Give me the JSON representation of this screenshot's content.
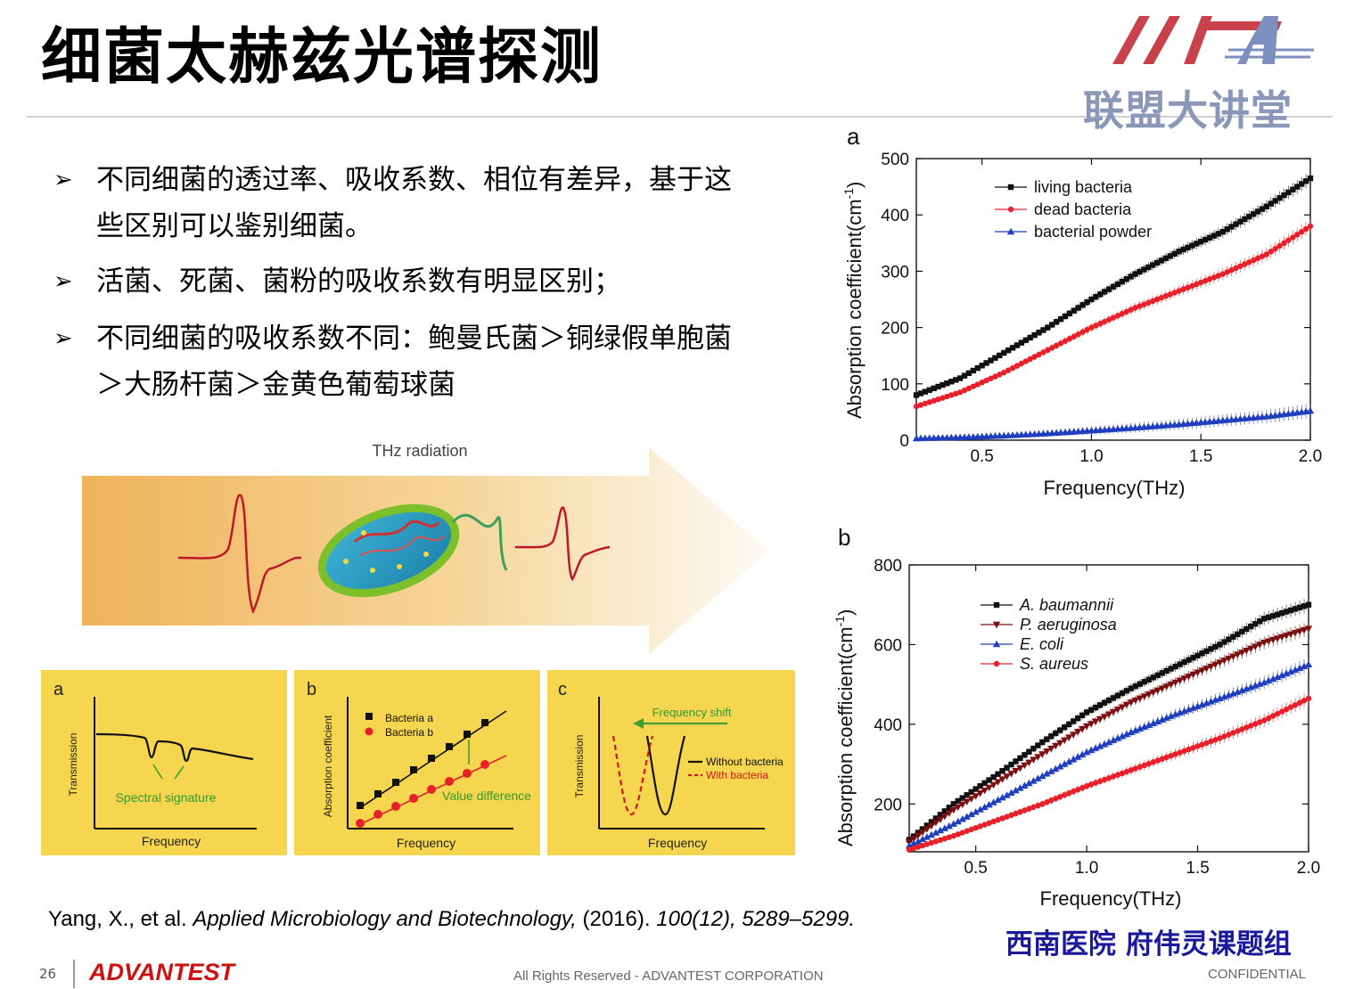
{
  "slide": {
    "title": "细菌太赫兹光谱探测",
    "logo_text": "联盟大讲堂",
    "bullets": [
      {
        "line1": "不同细菌的透过率、吸收系数、相位有差异，基于这",
        "line2": "些区别可以鉴别细菌。"
      },
      {
        "line1": "活菌、死菌、菌粉的吸收系数有明显区别；",
        "line2": ""
      },
      {
        "line1": "不同细菌的吸收系数不同：鲍曼氏菌＞铜绿假单胞菌",
        "line2": "＞大肠杆菌＞金黄色葡萄球菌"
      }
    ],
    "bullet_mark": "➢",
    "citation": {
      "authors": "Yang, X., et al. ",
      "journal": "Applied Microbiology and Biotechnology,",
      "year": " (2016). ",
      "volume": "100(12), 5289–5299."
    },
    "group_name": "西南医院 府伟灵课题组",
    "footer": {
      "page_number": "26",
      "brand": "ADVANTEST",
      "rights": "All Rights Reserved - ADVANTEST CORPORATION",
      "confidential": "CONFIDENTIAL"
    }
  },
  "illustration": {
    "arrow_label": "THz radiation",
    "panels": [
      {
        "letter": "a",
        "ylabel": "Transmission",
        "xlabel": "Frequency",
        "annotation": "Spectral signature"
      },
      {
        "letter": "b",
        "ylabel": "Absorption coefficient",
        "xlabel": "Frequency",
        "legend": [
          "Bacteria a",
          "Bacteria b"
        ],
        "annotation": "Value difference"
      },
      {
        "letter": "c",
        "ylabel": "Transmission",
        "xlabel": "Frequency",
        "legend": [
          "Without bacteria",
          "With bacteria"
        ],
        "annotation": "Frequency shift"
      }
    ]
  },
  "colors": {
    "black_series": "#111111",
    "red_series": "#e8202a",
    "blue_series": "#1f3fbf",
    "darkred_series": "#7a1010",
    "panel_yellow": "#f5d64e",
    "arrow_orange": "#f0b35a",
    "logo_red": "#c9414a",
    "logo_blue": "#7d8fbf"
  },
  "icons": {
    "bacterium": "bacterium-illustration",
    "wave": "thz-pulse-wave",
    "logo": "league-lecture-logo"
  },
  "chart_data": [
    {
      "panel": "a",
      "type": "line",
      "xlabel": "Frequency(THz)",
      "ylabel": "Absorption coefficient(cm",
      "ylabel_sup": "-1",
      "ylabel_close": ")",
      "xlim": [
        0.2,
        2.0
      ],
      "ylim": [
        0,
        500
      ],
      "xticks": [
        0.5,
        1.0,
        1.5,
        2.0
      ],
      "xtick_labels": [
        "0.5",
        "1.0",
        "1.5",
        "2.0"
      ],
      "yticks": [
        0,
        100,
        200,
        300,
        400,
        500
      ],
      "legend_position": "top-left",
      "series": [
        {
          "name": "living bacteria",
          "marker": "square",
          "color": "#111111",
          "x": [
            0.2,
            0.4,
            0.6,
            0.8,
            1.0,
            1.2,
            1.4,
            1.6,
            1.8,
            2.0
          ],
          "y": [
            80,
            110,
            155,
            200,
            250,
            295,
            335,
            370,
            415,
            465
          ]
        },
        {
          "name": "dead bacteria",
          "marker": "circle",
          "color": "#e8202a",
          "x": [
            0.2,
            0.4,
            0.6,
            0.8,
            1.0,
            1.2,
            1.4,
            1.6,
            1.8,
            2.0
          ],
          "y": [
            60,
            85,
            120,
            160,
            200,
            235,
            265,
            295,
            330,
            380
          ]
        },
        {
          "name": "bacterial powder",
          "marker": "triangle",
          "color": "#1f3fbf",
          "x": [
            0.2,
            0.4,
            0.6,
            0.8,
            1.0,
            1.2,
            1.4,
            1.6,
            1.8,
            2.0
          ],
          "y": [
            3,
            5,
            8,
            12,
            17,
            22,
            28,
            35,
            42,
            52
          ]
        }
      ]
    },
    {
      "panel": "b",
      "type": "line",
      "xlabel": "Frequency(THz)",
      "ylabel": "Absorption coefficient(cm",
      "ylabel_sup": "-1",
      "ylabel_close": ")",
      "xlim": [
        0.2,
        2.0
      ],
      "ylim": [
        80,
        800
      ],
      "xticks": [
        0.5,
        1.0,
        1.5,
        2.0
      ],
      "xtick_labels": [
        "0.5",
        "1.0",
        "1.5",
        "2.0"
      ],
      "yticks": [
        200,
        400,
        600,
        800
      ],
      "legend_position": "top-left",
      "series": [
        {
          "name": "A. baumannii",
          "marker": "square",
          "color": "#111111",
          "x": [
            0.2,
            0.4,
            0.6,
            0.8,
            1.0,
            1.2,
            1.4,
            1.6,
            1.8,
            2.0
          ],
          "y": [
            110,
            200,
            275,
            355,
            430,
            490,
            545,
            600,
            665,
            700
          ]
        },
        {
          "name": "P. aeruginosa",
          "marker": "triangle-down",
          "color": "#7a1010",
          "x": [
            0.2,
            0.4,
            0.6,
            0.8,
            1.0,
            1.2,
            1.4,
            1.6,
            1.8,
            2.0
          ],
          "y": [
            105,
            185,
            255,
            325,
            395,
            455,
            505,
            555,
            605,
            640
          ]
        },
        {
          "name": "E. coli",
          "marker": "triangle",
          "color": "#1f3fbf",
          "x": [
            0.2,
            0.4,
            0.6,
            0.8,
            1.0,
            1.2,
            1.4,
            1.6,
            1.8,
            2.0
          ],
          "y": [
            95,
            150,
            210,
            270,
            330,
            380,
            425,
            465,
            505,
            550
          ]
        },
        {
          "name": "S. aureus",
          "marker": "circle",
          "color": "#e8202a",
          "x": [
            0.2,
            0.4,
            0.6,
            0.8,
            1.0,
            1.2,
            1.4,
            1.6,
            1.8,
            2.0
          ],
          "y": [
            85,
            120,
            160,
            200,
            245,
            285,
            325,
            365,
            410,
            465
          ]
        }
      ]
    }
  ]
}
